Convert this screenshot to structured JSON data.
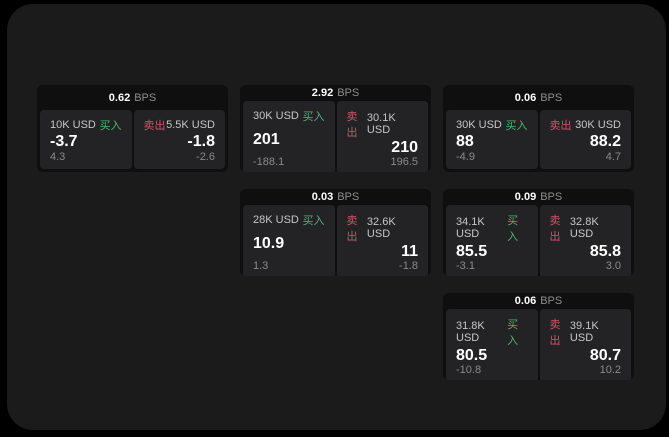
{
  "labels": {
    "buy": "买入",
    "sell": "卖出",
    "bps_unit": "BPS"
  },
  "colors": {
    "background": "#000000",
    "surface": "#1b1b1c",
    "card": "#0f0f10",
    "panel": "#232325",
    "buy_accent": "#4db56a",
    "sell_accent": "#cf5468",
    "price_text": "#ffffff",
    "muted_text": "#8a8a8c"
  },
  "cards": [
    {
      "bps": "0.62",
      "buy": {
        "notional": "10K USD",
        "price": "-3.7",
        "change": "4.3"
      },
      "sell": {
        "notional": "5.5K USD",
        "price": "-1.8",
        "change": "-2.6"
      }
    },
    {
      "bps": "2.92",
      "buy": {
        "notional": "30K USD",
        "price": "201",
        "change": "-188.1"
      },
      "sell": {
        "notional": "30.1K USD",
        "price": "210",
        "change": "196.5"
      }
    },
    {
      "bps": "0.06",
      "buy": {
        "notional": "30K USD",
        "price": "88",
        "change": "-4.9"
      },
      "sell": {
        "notional": "30K USD",
        "price": "88.2",
        "change": "4.7"
      }
    },
    {
      "bps": "0.03",
      "buy": {
        "notional": "28K USD",
        "price": "10.9",
        "change": "1.3"
      },
      "sell": {
        "notional": "32.6K USD",
        "price": "11",
        "change": "-1.8"
      }
    },
    {
      "bps": "0.09",
      "buy": {
        "notional": "34.1K USD",
        "price": "85.5",
        "change": "-3.1"
      },
      "sell": {
        "notional": "32.8K USD",
        "price": "85.8",
        "change": "3.0"
      }
    },
    {
      "bps": "0.06",
      "buy": {
        "notional": "31.8K USD",
        "price": "80.5",
        "change": "-10.8"
      },
      "sell": {
        "notional": "39.1K USD",
        "price": "80.7",
        "change": "10.2"
      }
    }
  ]
}
